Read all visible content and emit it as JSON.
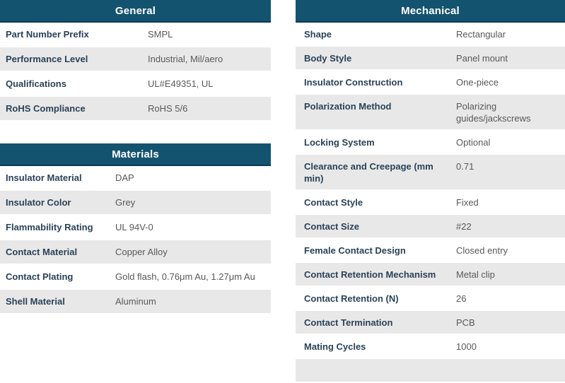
{
  "colors": {
    "header_bg": "#14536F",
    "header_border": "#0C3A52",
    "row_alt_bg": "#E8E8E8",
    "label_color": "#2A4257",
    "value_color": "#58595B"
  },
  "tables": {
    "general": {
      "title": "General",
      "rows": [
        {
          "label": "Part Number Prefix",
          "value": "SMPL"
        },
        {
          "label": "Performance Level",
          "value": "Industrial, Mil/aero"
        },
        {
          "label": "Qualifications",
          "value": "UL#E49351, UL"
        },
        {
          "label": "RoHS Compliance",
          "value": "RoHS 5/6"
        }
      ]
    },
    "materials": {
      "title": "Materials",
      "rows": [
        {
          "label": "Insulator Material",
          "value": "DAP"
        },
        {
          "label": "Insulator Color",
          "value": "Grey"
        },
        {
          "label": "Flammability Rating",
          "value": "UL 94V-0"
        },
        {
          "label": "Contact Material",
          "value": "Copper Alloy"
        },
        {
          "label": "Contact Plating",
          "value": "Gold flash, 0.76μm Au, 1.27μm Au"
        },
        {
          "label": "Shell Material",
          "value": "Aluminum"
        }
      ]
    },
    "mechanical": {
      "title": "Mechanical",
      "rows": [
        {
          "label": "Shape",
          "value": "Rectangular"
        },
        {
          "label": "Body Style",
          "value": "Panel mount"
        },
        {
          "label": "Insulator Construction",
          "value": "One-piece"
        },
        {
          "label": "Polarization Method",
          "value": "Polarizing guides/jackscrews"
        },
        {
          "label": "Locking System",
          "value": "Optional"
        },
        {
          "label": "Clearance and Creepage (mm min)",
          "value": "0.71"
        },
        {
          "label": "Contact Style",
          "value": "Fixed"
        },
        {
          "label": "Contact Size",
          "value": "#22"
        },
        {
          "label": "Female Contact Design",
          "value": "Closed entry"
        },
        {
          "label": "Contact Retention Mechanism",
          "value": "Metal clip"
        },
        {
          "label": "Contact Retention (N)",
          "value": "26"
        },
        {
          "label": "Contact Termination",
          "value": "PCB"
        },
        {
          "label": "Mating Cycles",
          "value": "1000"
        }
      ]
    }
  }
}
